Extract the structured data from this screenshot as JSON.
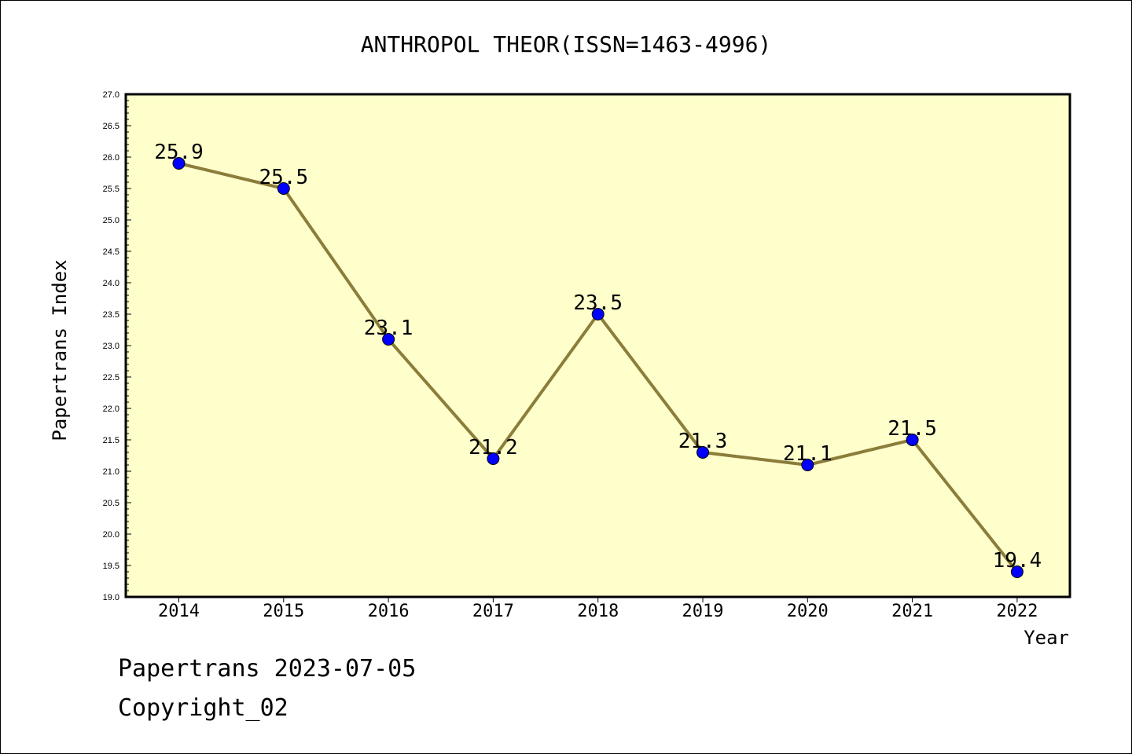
{
  "chart_data": {
    "type": "line",
    "title": "ANTHROPOL THEOR(ISSN=1463-4996)",
    "xlabel": "Year",
    "ylabel": "Papertrans Index",
    "categories": [
      "2014",
      "2015",
      "2016",
      "2017",
      "2018",
      "2019",
      "2020",
      "2021",
      "2022"
    ],
    "values": [
      25.9,
      25.5,
      23.1,
      21.2,
      23.5,
      21.3,
      21.1,
      21.5,
      19.4
    ],
    "data_labels": [
      "25.9",
      "25.5",
      "23.1",
      "21.2",
      "23.5",
      "21.3",
      "21.1",
      "21.5",
      "19.4"
    ],
    "ylim": [
      19.0,
      27.0
    ],
    "yticks": [
      "19.0",
      "19.5",
      "20.0",
      "20.5",
      "21.0",
      "21.5",
      "22.0",
      "22.5",
      "23.0",
      "23.5",
      "24.0",
      "24.5",
      "25.0",
      "25.5",
      "26.0",
      "26.5",
      "27.0"
    ],
    "grid": false,
    "legend": "none",
    "colors": {
      "plot_background": "#ffffcc",
      "line": "#8b7d3a",
      "marker": "#0000ff"
    }
  },
  "footer": {
    "line1": "Papertrans 2023-07-05",
    "line2": "Copyright_02"
  }
}
